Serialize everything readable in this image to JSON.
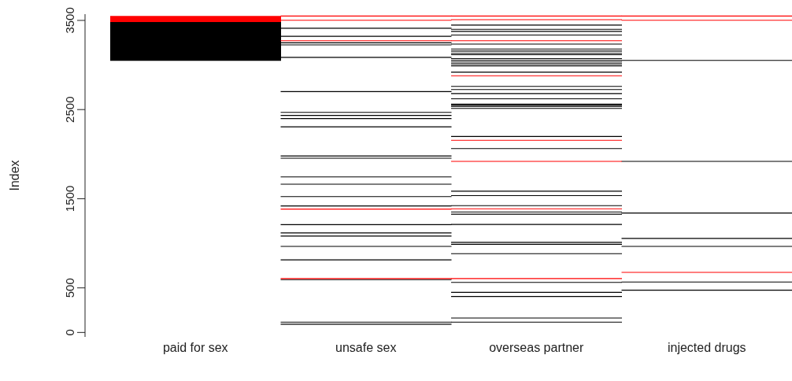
{
  "chart_data": {
    "type": "bar",
    "ylabel": "Index",
    "categories": [
      "paid for sex",
      "unsafe sex",
      "overseas partner",
      "injected drugs"
    ],
    "ylim": [
      -50,
      3570
    ],
    "yticks": [
      0,
      500,
      1500,
      2500,
      3500
    ],
    "series": [
      {
        "color": "#000000",
        "base": [
          3046,
          3407,
          3442,
          3046
        ],
        "values": [
          436,
          10,
          10,
          10
        ]
      },
      {
        "color": "#000000",
        "base": [
          null,
          3317,
          3395,
          1914
        ],
        "values": [
          null,
          10,
          10,
          10
        ]
      },
      {
        "color": "#000000",
        "base": [
          null,
          3244,
          3372,
          1335
        ],
        "values": [
          null,
          10,
          10,
          10
        ]
      },
      {
        "color": "#000000",
        "base": [
          null,
          3221,
          3331,
          1050
        ],
        "values": [
          null,
          10,
          10,
          10
        ]
      },
      {
        "color": "#000000",
        "base": [
          null,
          3081,
          3229,
          960
        ],
        "values": [
          null,
          10,
          10,
          10
        ]
      },
      {
        "color": "#000000",
        "base": [
          null,
          2697,
          3174,
          561
        ],
        "values": [
          null,
          10,
          10,
          10
        ]
      },
      {
        "color": "#000000",
        "base": [
          null,
          2464,
          3151,
          469
        ],
        "values": [
          null,
          10,
          10,
          10
        ]
      },
      {
        "color": "#000000",
        "base": [
          null,
          2429,
          3126,
          null
        ],
        "values": [
          null,
          10,
          10,
          null
        ]
      },
      {
        "color": "#000000",
        "base": [
          null,
          2394,
          3110,
          null
        ],
        "values": [
          null,
          10,
          10,
          null
        ]
      },
      {
        "color": "#000000",
        "base": [
          null,
          2301,
          3066,
          null
        ],
        "values": [
          null,
          10,
          10,
          null
        ]
      },
      {
        "color": "#000000",
        "base": [
          null,
          1975,
          3049,
          null
        ],
        "values": [
          null,
          10,
          10,
          null
        ]
      },
      {
        "color": "#000000",
        "base": [
          null,
          1949,
          3029,
          null
        ],
        "values": [
          null,
          10,
          10,
          null
        ]
      },
      {
        "color": "#000000",
        "base": [
          null,
          1740,
          3008,
          null
        ],
        "values": [
          null,
          10,
          10,
          null
        ]
      },
      {
        "color": "#000000",
        "base": [
          null,
          1658,
          2985,
          null
        ],
        "values": [
          null,
          10,
          10,
          null
        ]
      },
      {
        "color": "#000000",
        "base": [
          null,
          1519,
          2915,
          null
        ],
        "values": [
          null,
          10,
          10,
          null
        ]
      },
      {
        "color": "#000000",
        "base": [
          null,
          1414,
          2755,
          null
        ],
        "values": [
          null,
          10,
          10,
          null
        ]
      },
      {
        "color": "#000000",
        "base": [
          null,
          1204,
          2720,
          null
        ],
        "values": [
          null,
          10,
          10,
          null
        ]
      },
      {
        "color": "#000000",
        "base": [
          null,
          1111,
          2674,
          null
        ],
        "values": [
          null,
          10,
          10,
          null
        ]
      },
      {
        "color": "#000000",
        "base": [
          null,
          1076,
          2616,
          null
        ],
        "values": [
          null,
          10,
          10,
          null
        ]
      },
      {
        "color": "#000000",
        "base": [
          null,
          960,
          2555,
          null
        ],
        "values": [
          null,
          10,
          10,
          null
        ]
      },
      {
        "color": "#000000",
        "base": [
          null,
          809,
          2543,
          null
        ],
        "values": [
          null,
          10,
          10,
          null
        ]
      },
      {
        "color": "#000000",
        "base": [
          null,
          587,
          2531,
          null
        ],
        "values": [
          null,
          10,
          10,
          null
        ]
      },
      {
        "color": "#000000",
        "base": [
          null,
          111,
          2508,
          null
        ],
        "values": [
          null,
          10,
          10,
          null
        ]
      },
      {
        "color": "#000000",
        "base": [
          null,
          87,
          2193,
          null
        ],
        "values": [
          null,
          10,
          10,
          null
        ]
      },
      {
        "color": "#000000",
        "base": [
          null,
          null,
          2057,
          null
        ],
        "values": [
          null,
          null,
          10,
          null
        ]
      },
      {
        "color": "#000000",
        "base": [
          null,
          null,
          1580,
          null
        ],
        "values": [
          null,
          null,
          10,
          null
        ]
      },
      {
        "color": "#000000",
        "base": [
          null,
          null,
          1530,
          null
        ],
        "values": [
          null,
          null,
          10,
          null
        ]
      },
      {
        "color": "#000000",
        "base": [
          null,
          null,
          1417,
          null
        ],
        "values": [
          null,
          null,
          10,
          null
        ]
      },
      {
        "color": "#000000",
        "base": [
          null,
          null,
          1347,
          null
        ],
        "values": [
          null,
          null,
          10,
          null
        ]
      },
      {
        "color": "#000000",
        "base": [
          null,
          null,
          1321,
          null
        ],
        "values": [
          null,
          null,
          10,
          null
        ]
      },
      {
        "color": "#000000",
        "base": [
          null,
          null,
          1207,
          null
        ],
        "values": [
          null,
          null,
          10,
          null
        ]
      },
      {
        "color": "#000000",
        "base": [
          null,
          null,
          1006,
          null
        ],
        "values": [
          null,
          null,
          10,
          null
        ]
      },
      {
        "color": "#000000",
        "base": [
          null,
          null,
          984,
          null
        ],
        "values": [
          null,
          null,
          10,
          null
        ]
      },
      {
        "color": "#000000",
        "base": [
          null,
          null,
          879,
          null
        ],
        "values": [
          null,
          null,
          10,
          null
        ]
      },
      {
        "color": "#000000",
        "base": [
          null,
          null,
          556,
          null
        ],
        "values": [
          null,
          null,
          10,
          null
        ]
      },
      {
        "color": "#000000",
        "base": [
          null,
          null,
          445,
          null
        ],
        "values": [
          null,
          null,
          10,
          null
        ]
      },
      {
        "color": "#000000",
        "base": [
          null,
          null,
          399,
          null
        ],
        "values": [
          null,
          null,
          10,
          null
        ]
      },
      {
        "color": "#000000",
        "base": [
          null,
          null,
          157,
          null
        ],
        "values": [
          null,
          null,
          10,
          null
        ]
      },
      {
        "color": "#000000",
        "base": [
          null,
          null,
          111,
          null
        ],
        "values": [
          null,
          null,
          10,
          null
        ]
      },
      {
        "color": "#ff0000",
        "base": [
          3482,
          3544,
          3544,
          3544
        ],
        "values": [
          68,
          10,
          10,
          10
        ]
      },
      {
        "color": "#ff0000",
        "base": [
          null,
          3497,
          3503,
          3497
        ],
        "values": [
          null,
          10,
          10,
          10
        ]
      },
      {
        "color": "#ff0000",
        "base": [
          null,
          3267,
          3267,
          669
        ],
        "values": [
          null,
          10,
          10,
          10
        ]
      },
      {
        "color": "#ff0000",
        "base": [
          null,
          1379,
          2874,
          null
        ],
        "values": [
          null,
          10,
          10,
          null
        ]
      },
      {
        "color": "#ff0000",
        "base": [
          null,
          600,
          2150,
          null
        ],
        "values": [
          null,
          10,
          10,
          null
        ]
      },
      {
        "color": "#ff0000",
        "base": [
          null,
          null,
          1914,
          null
        ],
        "values": [
          null,
          null,
          10,
          null
        ]
      },
      {
        "color": "#ff0000",
        "base": [
          null,
          null,
          1382,
          null
        ],
        "values": [
          null,
          null,
          10,
          null
        ]
      },
      {
        "color": "#ff0000",
        "base": [
          null,
          null,
          600,
          null
        ],
        "values": [
          null,
          null,
          10,
          null
        ]
      }
    ]
  }
}
